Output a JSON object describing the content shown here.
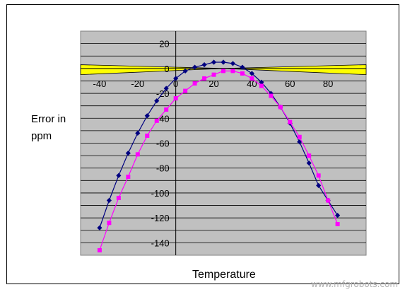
{
  "chart_data": {
    "type": "line",
    "xlabel": "Temperature",
    "ylabel": "Error in ppm",
    "xlim": [
      -50,
      100
    ],
    "ylim": [
      -150,
      30
    ],
    "x_ticks": [
      -40,
      -20,
      0,
      20,
      40,
      60,
      80
    ],
    "y_ticks": [
      20,
      0,
      -20,
      -40,
      -60,
      -80,
      -100,
      -120,
      -140
    ],
    "grid": "horizontal",
    "plot_background": "#c0c0c0",
    "tolerance_band": {
      "color": "#ffff00",
      "x": [
        -50,
        25,
        100
      ],
      "upper": [
        3,
        0,
        3
      ],
      "lower": [
        -5,
        0,
        -5
      ]
    },
    "series": [
      {
        "color": "#000080",
        "marker": "diamond",
        "x": [
          -40,
          -35,
          -30,
          -25,
          -20,
          -15,
          -10,
          -5,
          0,
          5,
          10,
          15,
          20,
          25,
          30,
          35,
          40,
          45,
          50,
          55,
          60,
          65,
          70,
          75,
          80,
          85
        ],
        "y": [
          -128,
          -106,
          -86,
          -68,
          -52,
          -38,
          -26,
          -16,
          -8,
          -2,
          1,
          3,
          5,
          5,
          4,
          1,
          -4,
          -11,
          -20,
          -31,
          -44,
          -59,
          -76,
          -94,
          -106,
          -118
        ]
      },
      {
        "color": "#ff00ff",
        "marker": "square",
        "x": [
          -40,
          -35,
          -30,
          -25,
          -20,
          -15,
          -10,
          -5,
          0,
          5,
          10,
          15,
          20,
          25,
          30,
          35,
          40,
          45,
          50,
          55,
          60,
          65,
          70,
          75,
          80,
          85
        ],
        "y": [
          -146,
          -124,
          -104,
          -87,
          -69,
          -54,
          -42,
          -33,
          -24,
          -18,
          -12,
          -8,
          -5,
          -2,
          -2,
          -4,
          -8,
          -14,
          -22,
          -31,
          -43,
          -55,
          -70,
          -86,
          -106,
          -125
        ]
      }
    ]
  },
  "watermark": "www.mfgrobots.com"
}
